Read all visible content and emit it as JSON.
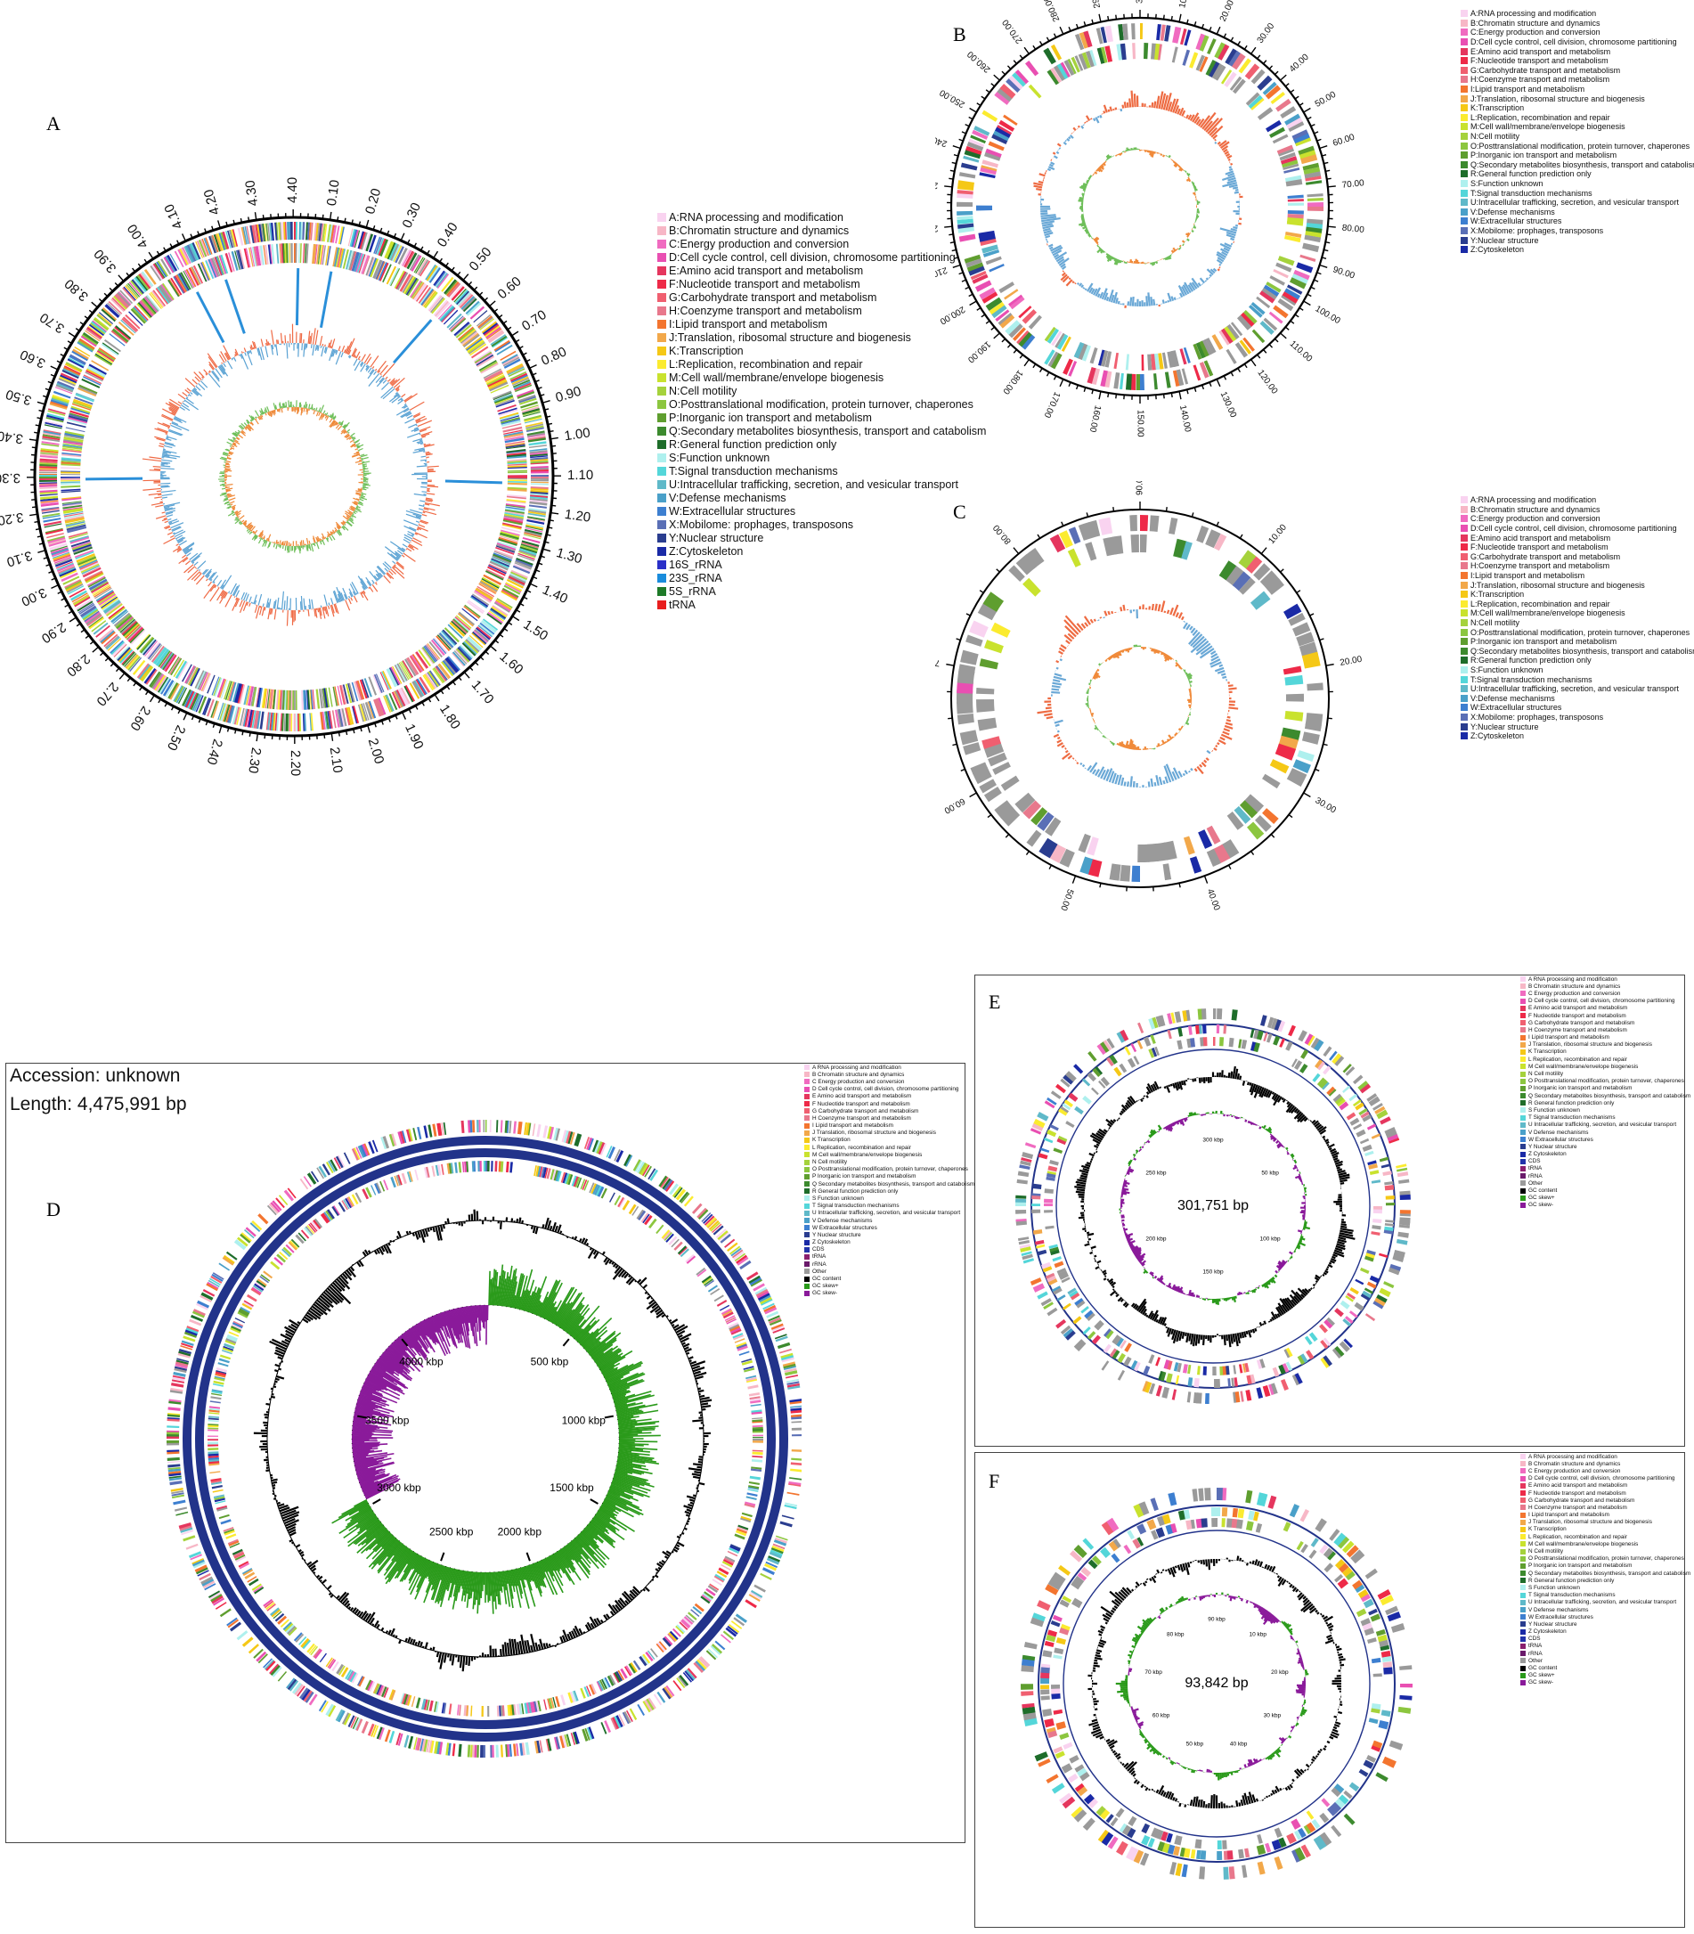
{
  "legend_cog_abc": [
    "A:RNA processing and modification",
    "B:Chromatin structure and dynamics",
    "C:Energy production and conversion",
    "D:Cell cycle control, cell division, chromosome partitioning",
    "E:Amino acid transport and metabolism",
    "F:Nucleotide transport and metabolism",
    "G:Carbohydrate transport and metabolism",
    "H:Coenzyme transport and metabolism",
    "I:Lipid transport and metabolism",
    "J:Translation, ribosomal structure and biogenesis",
    "K:Transcription",
    "L:Replication, recombination and repair",
    "M:Cell wall/membrane/envelope biogenesis",
    "N:Cell motility",
    "O:Posttranslational modification, protein turnover, chaperones",
    "P:Inorganic ion transport and metabolism",
    "Q:Secondary metabolites biosynthesis, transport and catabolism",
    "R:General function prediction only",
    "S:Function unknown",
    "T:Signal transduction mechanisms",
    "U:Intracellular trafficking, secretion, and vesicular transport",
    "V:Defense mechanisms",
    "W:Extracellular structures",
    "X:Mobilome: prophages, transposons",
    "Y:Nuclear structure",
    "Z:Cytoskeleton"
  ],
  "legend_a_extra": [
    "16S_rRNA",
    "23S_rRNA",
    "5S_rRNA",
    "tRNA"
  ],
  "legend_cog_def": [
    "A RNA processing and modification",
    "B Chromatin structure and dynamics",
    "C Energy production and conversion",
    "D Cell cycle control, cell division, chromosome partitioning",
    "E Amino acid transport and metabolism",
    "F Nucleotide transport and metabolism",
    "G Carbohydrate transport and metabolism",
    "H Coenzyme transport and metabolism",
    "I Lipid transport and metabolism",
    "J Translation, ribosomal structure and biogenesis",
    "K Transcription",
    "L Replication, recombination and repair",
    "M Cell wall/membrane/envelope biogenesis",
    "N Cell motility",
    "O Posttranslational modification, protein turnover, chaperones",
    "P Inorganic ion transport and metabolism",
    "Q Secondary metabolites biosynthesis, transport and catabolism",
    "R General function prediction only",
    "S Function unknown",
    "T Signal transduction mechanisms",
    "U Intracellular trafficking, secretion, and vesicular transport",
    "V Defense mechanisms",
    "W Extracellular structures",
    "Y Nuclear structure",
    "Z Cytoskeleton",
    "CDS",
    "tRNA",
    "rRNA",
    "Other",
    "GC content",
    "GC skew+",
    "GC skew-"
  ],
  "legend_colors": {
    "cog": [
      "#f9d3f0",
      "#f7b7c6",
      "#f06bc0",
      "#e94fb2",
      "#e5365e",
      "#ee2a48",
      "#f05f70",
      "#e8788c",
      "#f3752f",
      "#f2a84a",
      "#f5c816",
      "#fbeb2f",
      "#c9e22e",
      "#a5d23c",
      "#8cc63f",
      "#5f9e2f",
      "#3c8a2e",
      "#1e6d2a",
      "#aef0ee",
      "#54d6d9",
      "#5fb9c9",
      "#4aa0c9",
      "#3d7fd0",
      "#5a6fb6",
      "#2a3d8f",
      "#1a2aa6"
    ],
    "a_extra": [
      "#2a30c8",
      "#1a8cdc",
      "#1e7a28",
      "#e81e1e"
    ],
    "def_extra": [
      "#2233aa",
      "#8a1f6e",
      "#6a1a6a",
      "#9a9a9a",
      "#000000",
      "#2a9a1a",
      "#8a1a9a"
    ]
  },
  "panels": {
    "a": {
      "label": "A",
      "ticks": [
        "0.10",
        "0.20",
        "0.30",
        "0.40",
        "0.50",
        "0.60",
        "0.70",
        "0.80",
        "0.90",
        "1.00",
        "1.10",
        "1.20",
        "1.30",
        "1.40",
        "1.50",
        "1.60",
        "1.70",
        "1.80",
        "1.90",
        "2.00",
        "2.10",
        "2.20",
        "2.30",
        "2.40",
        "2.50",
        "2.60",
        "2.70",
        "2.80",
        "2.90",
        "3.00",
        "3.10",
        "3.20",
        "3.30",
        "3.40",
        "3.50",
        "3.60",
        "3.70",
        "3.80",
        "3.90",
        "4.00",
        "4.10",
        "4.20",
        "4.30",
        "4.40"
      ]
    },
    "b": {
      "label": "B",
      "ticks": [
        "300.00",
        "10.00",
        "20.00",
        "30.00",
        "40.00",
        "50.00",
        "60.00",
        "70.00",
        "80.00",
        "90.00",
        "100.00",
        "110.00",
        "120.00",
        "130.00",
        "140.00",
        "150.00",
        "160.00",
        "170.00",
        "180.00",
        "190.00",
        "200.00",
        "210.00",
        "220.00",
        "230.00",
        "240.00",
        "250.00",
        "260.00",
        "270.00",
        "280.00",
        "290.00"
      ]
    },
    "c": {
      "label": "C",
      "ticks": [
        "90.00",
        "10.00",
        "20.00",
        "30.00",
        "40.00",
        "50.00",
        "60.00",
        "70.00",
        "80.00"
      ]
    },
    "d": {
      "label": "D",
      "accession": "Accession: unknown",
      "length": "Length: 4,475,991 bp",
      "ticks": [
        "500 kbp",
        "1000 kbp",
        "1500 kbp",
        "2000 kbp",
        "2500 kbp",
        "3000 kbp",
        "3500 kbp",
        "4000 kbp"
      ]
    },
    "e": {
      "label": "E",
      "center": "301,751 bp",
      "ticks": [
        "300 kbp",
        "50 kbp",
        "100 kbp",
        "150 kbp",
        "200 kbp",
        "250 kbp"
      ]
    },
    "f": {
      "label": "F",
      "center": "93,842 bp",
      "ticks": [
        "90 kbp",
        "10 kbp",
        "20 kbp",
        "30 kbp",
        "40 kbp",
        "50 kbp",
        "60 kbp",
        "70 kbp",
        "80 kbp"
      ]
    }
  }
}
